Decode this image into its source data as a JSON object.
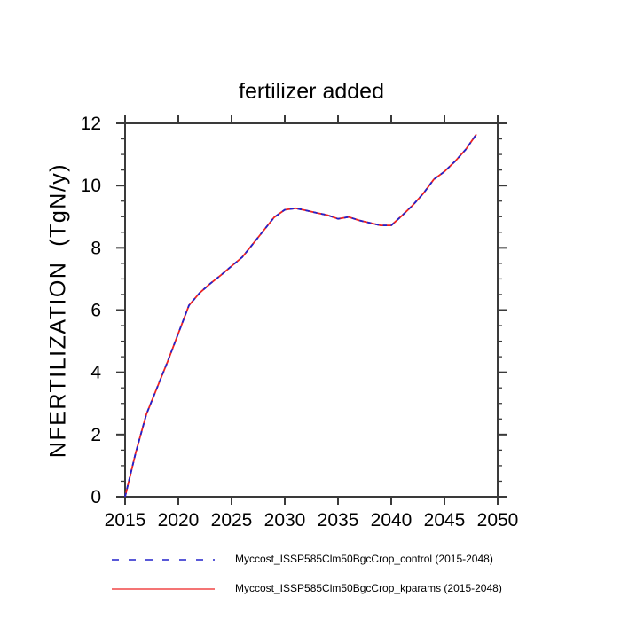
{
  "figure": {
    "background": "#ffffff",
    "axis_color": "#3a3a3a"
  },
  "chart_data": {
    "type": "line",
    "title": "fertilizer added",
    "ylabel": "NFERTILIZATION  (TgN/y)",
    "xlabel": "",
    "xlim": [
      2015,
      2050
    ],
    "ylim": [
      0,
      12
    ],
    "x_major_ticks": [
      2015,
      2020,
      2025,
      2030,
      2035,
      2040,
      2045,
      2050
    ],
    "y_major_ticks": [
      0,
      2,
      4,
      6,
      8,
      10,
      12
    ],
    "y_minor_step": 0.5,
    "grid": false,
    "legend_position": "bottom",
    "x": [
      2015,
      2016,
      2017,
      2018,
      2019,
      2020,
      2021,
      2022,
      2023,
      2024,
      2025,
      2026,
      2027,
      2028,
      2029,
      2030,
      2031,
      2032,
      2033,
      2034,
      2035,
      2036,
      2037,
      2038,
      2039,
      2040,
      2041,
      2042,
      2043,
      2044,
      2045,
      2046,
      2047,
      2048
    ],
    "series": [
      {
        "name": "Myccost_ISSP585Clm50BgcCrop_control (2015-2048)",
        "color": "#2222cc",
        "style": "dashed",
        "values": [
          0.0,
          1.42,
          2.65,
          3.5,
          4.35,
          5.25,
          6.15,
          6.55,
          6.85,
          7.12,
          7.41,
          7.7,
          8.12,
          8.55,
          8.98,
          9.22,
          9.27,
          9.2,
          9.12,
          9.05,
          8.93,
          8.99,
          8.88,
          8.8,
          8.72,
          8.72,
          9.03,
          9.36,
          9.74,
          10.2,
          10.45,
          10.78,
          11.16,
          11.65
        ]
      },
      {
        "name": "Myccost_ISSP585Clm50BgcCrop_kparams (2015-2048)",
        "color": "#ee2222",
        "style": "solid",
        "values": [
          0.0,
          1.42,
          2.65,
          3.5,
          4.35,
          5.25,
          6.15,
          6.55,
          6.85,
          7.12,
          7.41,
          7.7,
          8.12,
          8.55,
          8.98,
          9.22,
          9.27,
          9.2,
          9.12,
          9.05,
          8.93,
          8.99,
          8.88,
          8.8,
          8.72,
          8.72,
          9.03,
          9.36,
          9.74,
          10.2,
          10.45,
          10.78,
          11.16,
          11.65
        ]
      }
    ]
  }
}
